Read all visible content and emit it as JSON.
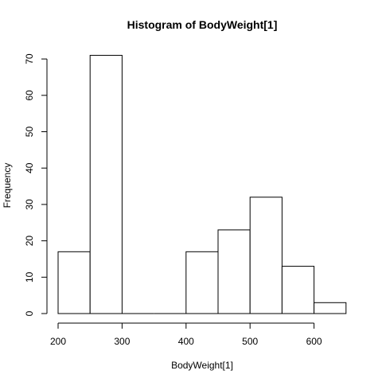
{
  "chart_data": {
    "type": "bar",
    "title": "Histogram of BodyWeight[1]",
    "xlabel": "BodyWeight[1]",
    "ylabel": "Frequency",
    "bins": [
      {
        "from": 200,
        "to": 250,
        "count": 17
      },
      {
        "from": 250,
        "to": 300,
        "count": 71
      },
      {
        "from": 300,
        "to": 350,
        "count": 0
      },
      {
        "from": 350,
        "to": 400,
        "count": 0
      },
      {
        "from": 400,
        "to": 450,
        "count": 17
      },
      {
        "from": 450,
        "to": 500,
        "count": 23
      },
      {
        "from": 500,
        "to": 550,
        "count": 32
      },
      {
        "from": 550,
        "to": 600,
        "count": 13
      },
      {
        "from": 600,
        "to": 650,
        "count": 3
      }
    ],
    "xlim": [
      200,
      650
    ],
    "ylim": [
      0,
      71
    ],
    "x_ticks": [
      200,
      300,
      400,
      500,
      600
    ],
    "y_ticks": [
      0,
      10,
      20,
      30,
      40,
      50,
      60,
      70
    ],
    "grid": false
  }
}
